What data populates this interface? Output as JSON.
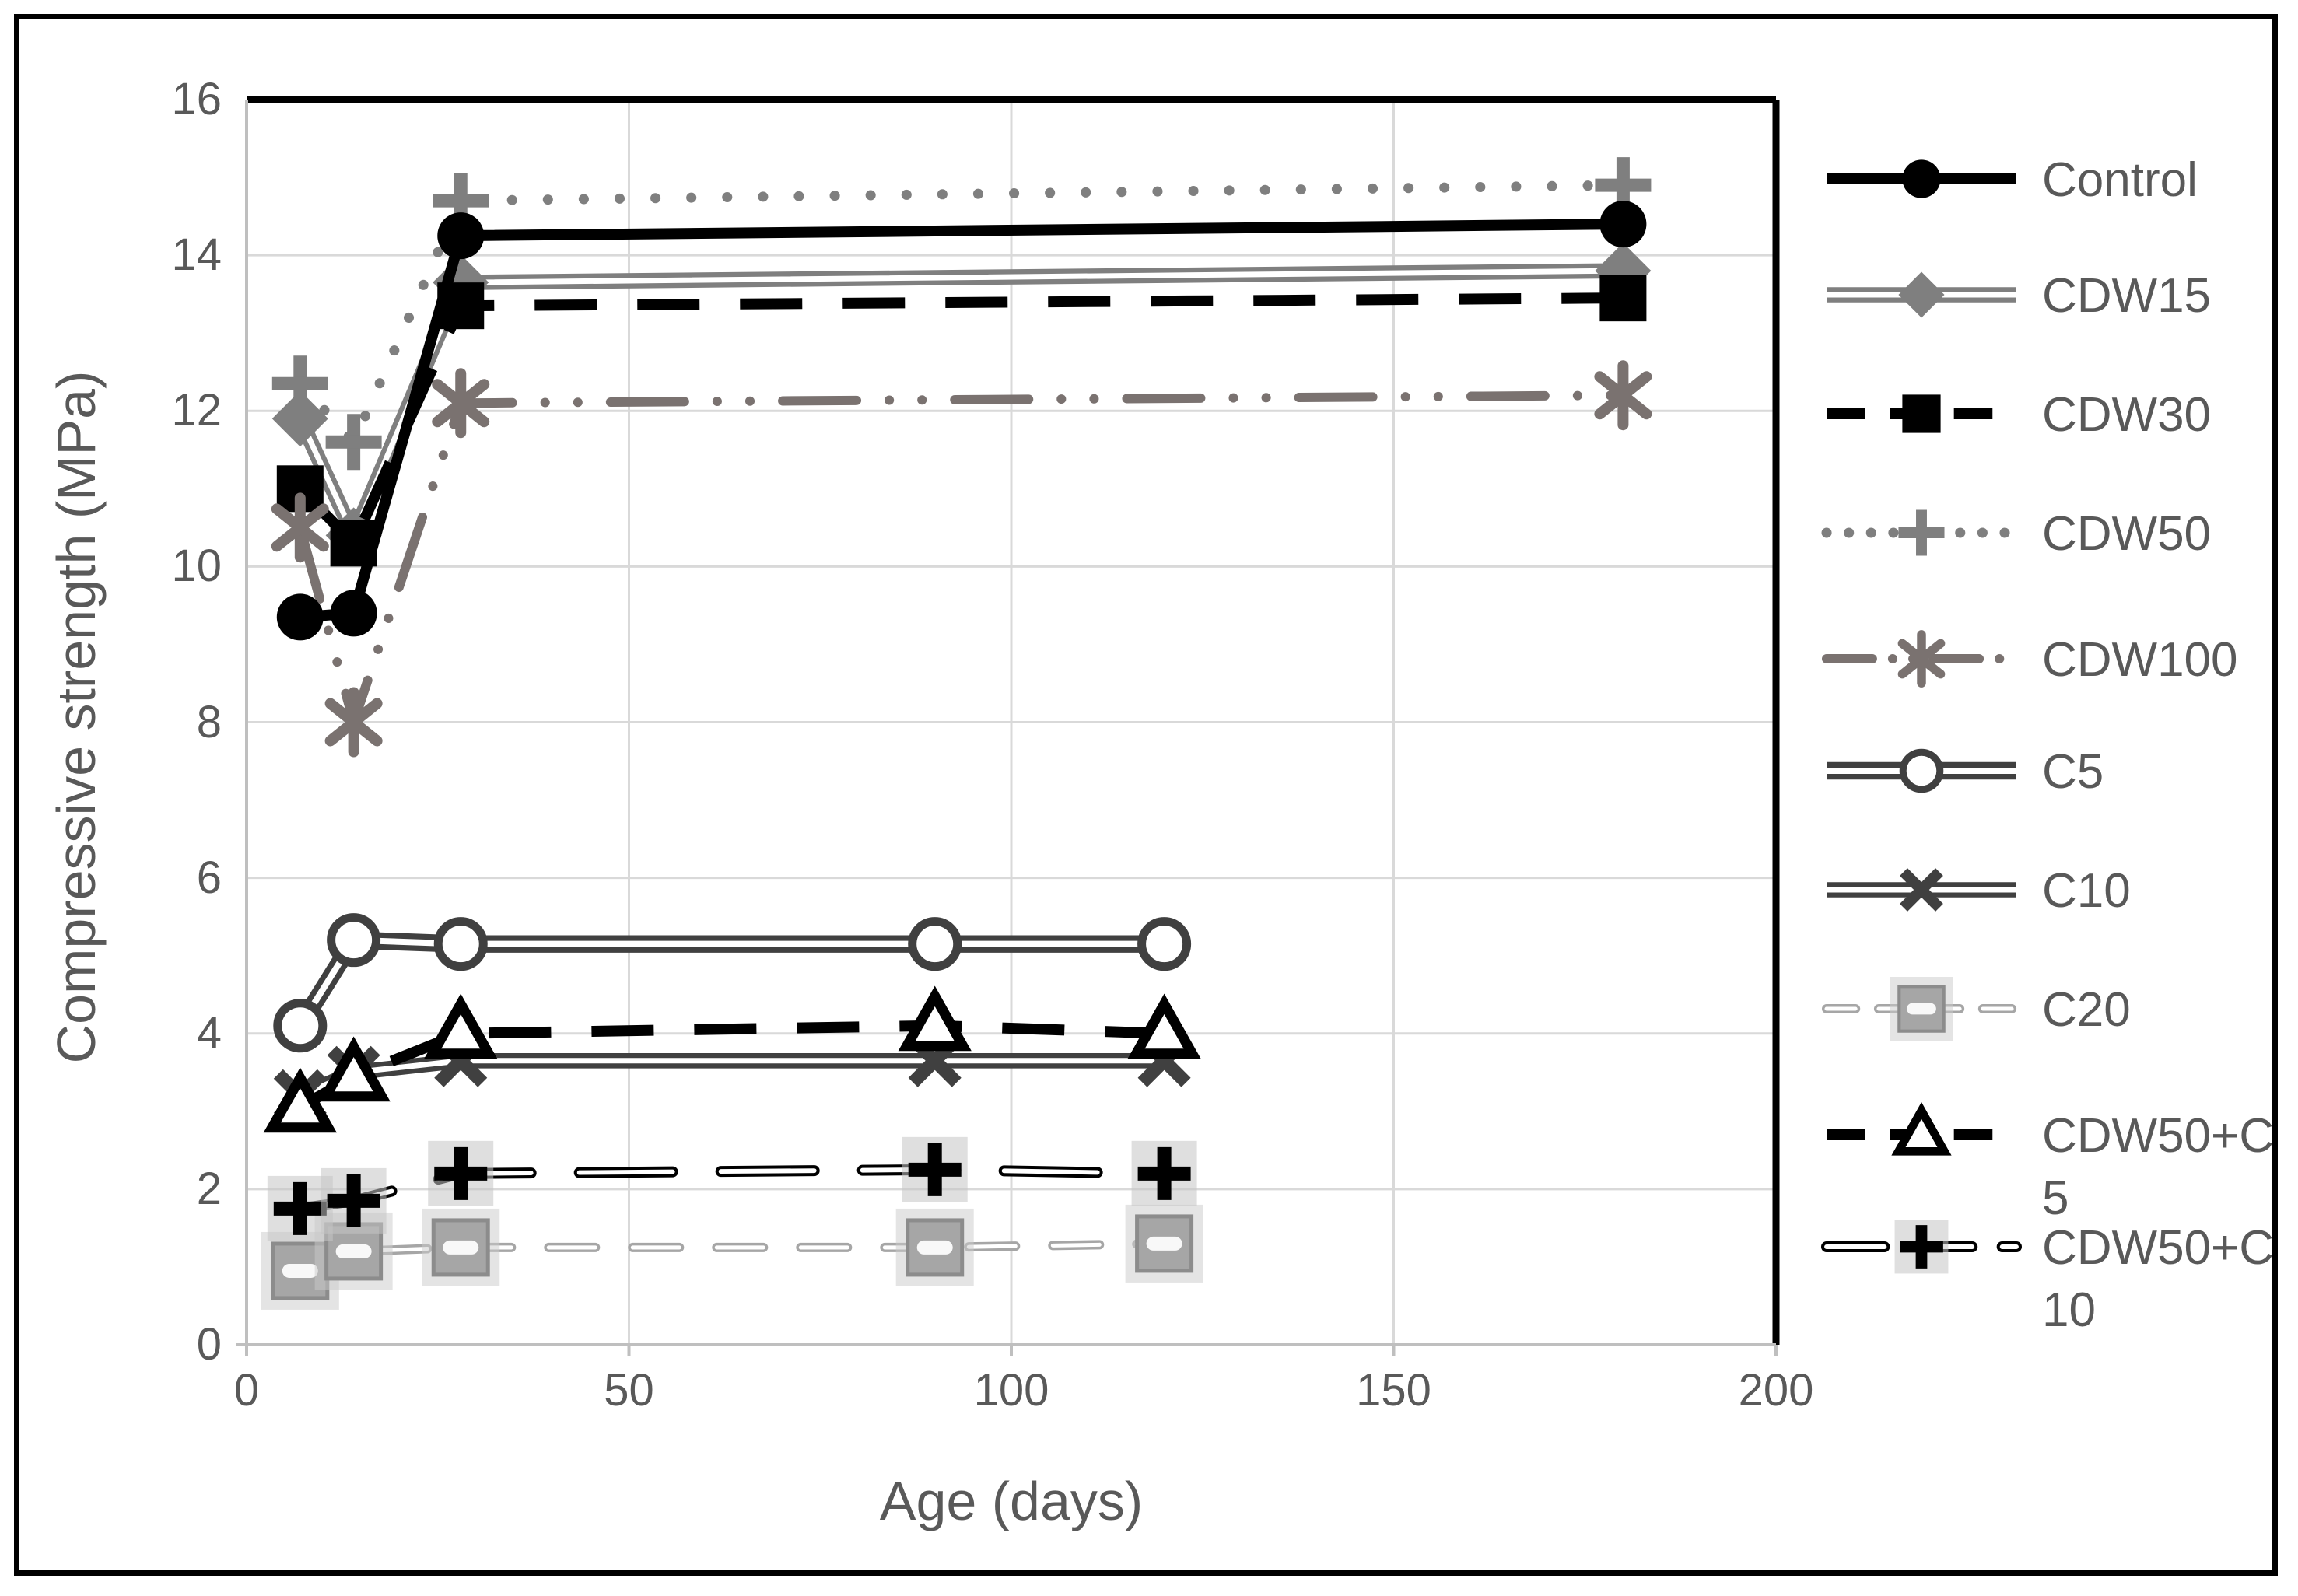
{
  "figure": {
    "background": "#ffffff",
    "border_color": "#000000"
  },
  "colors": {
    "text": "#595959",
    "gridline": "#d9d9d9",
    "axis_line": "#bfbfbf",
    "plot_border_dark": "#000000"
  },
  "chart_data": {
    "type": "line",
    "title": "",
    "xlabel": "Age (days)",
    "ylabel": "Compressive strength (MPa)",
    "xlim": [
      0,
      200
    ],
    "ylim": [
      0,
      16
    ],
    "x_ticks": [
      0,
      50,
      100,
      150,
      200
    ],
    "y_ticks": [
      0,
      2,
      4,
      6,
      8,
      10,
      12,
      14,
      16
    ],
    "grid": true,
    "legend_position": "right",
    "series": [
      {
        "name": "Control",
        "label_lines": [
          "Control"
        ],
        "color": "#000000",
        "line": {
          "type": "solid",
          "width": 14
        },
        "marker": "filled-circle",
        "x": [
          7,
          14,
          28,
          180
        ],
        "values": [
          9.35,
          9.4,
          14.25,
          14.4
        ]
      },
      {
        "name": "CDW15",
        "label_lines": [
          "CDW15"
        ],
        "color": "#7f7f7f",
        "line": {
          "type": "double",
          "width": 14
        },
        "marker": "filled-diamond",
        "x": [
          7,
          14,
          28,
          180
        ],
        "values": [
          11.9,
          10.4,
          13.65,
          13.8
        ]
      },
      {
        "name": "CDW30",
        "label_lines": [
          "CDW30"
        ],
        "color": "#000000",
        "line": {
          "type": "dash",
          "width": 14,
          "dash": [
            80,
            52
          ]
        },
        "marker": "filled-square",
        "x": [
          7,
          14,
          28,
          180
        ],
        "values": [
          11.0,
          10.3,
          13.35,
          13.45
        ]
      },
      {
        "name": "CDW50",
        "label_lines": [
          "CDW50"
        ],
        "color": "#7f7f7f",
        "line": {
          "type": "dot",
          "width": 13,
          "dash": [
            0.1,
            46
          ]
        },
        "marker": "bold-plus",
        "x": [
          7,
          14,
          28,
          180
        ],
        "values": [
          12.35,
          11.6,
          14.7,
          14.9
        ]
      },
      {
        "name": "CDW100",
        "label_lines": [
          "CDW100"
        ],
        "color": "#7a7270",
        "line": {
          "type": "dash-dot-dot",
          "width": 12,
          "dash": [
            95,
            42,
            0.1,
            42,
            0.1,
            42
          ]
        },
        "marker": "asterisk",
        "x": [
          7,
          14,
          28,
          180
        ],
        "values": [
          10.5,
          8.0,
          12.1,
          12.2
        ]
      },
      {
        "name": "C5",
        "label_lines": [
          "C5"
        ],
        "color": "#404040",
        "line": {
          "type": "double",
          "width": 16
        },
        "marker": "open-circle",
        "x": [
          7,
          14,
          28,
          90,
          120
        ],
        "values": [
          4.1,
          5.2,
          5.15,
          5.15,
          5.15
        ]
      },
      {
        "name": "C10",
        "label_lines": [
          "C10"
        ],
        "color": "#404040",
        "line": {
          "type": "double",
          "width": 14
        },
        "marker": "bold-x",
        "x": [
          7,
          14,
          28,
          90,
          120
        ],
        "values": [
          3.2,
          3.5,
          3.65,
          3.65,
          3.65
        ]
      },
      {
        "name": "C20",
        "label_lines": [
          "C20"
        ],
        "color": "#a6a6a6",
        "line": {
          "type": "pill-dash",
          "width": 12,
          "dash": [
            60,
            48
          ]
        },
        "marker": "gray-square",
        "x": [
          7,
          14,
          28,
          90,
          120
        ],
        "values": [
          0.95,
          1.2,
          1.25,
          1.25,
          1.3
        ]
      },
      {
        "name": "CDW50+C5",
        "label_lines": [
          "CDW50+C",
          "5"
        ],
        "color": "#000000",
        "line": {
          "type": "dash",
          "width": 14,
          "dash": [
            80,
            52
          ]
        },
        "marker": "open-triangle",
        "x": [
          7,
          14,
          28,
          90,
          120
        ],
        "values": [
          3.05,
          3.45,
          4.0,
          4.1,
          4.0
        ]
      },
      {
        "name": "CDW50+C10",
        "label_lines": [
          "CDW50+C",
          "10"
        ],
        "color": "#000000",
        "line": {
          "type": "pill-dash",
          "width": 14,
          "dash": [
            120,
            62
          ]
        },
        "marker": "halo-plus",
        "x": [
          7,
          14,
          28,
          90,
          120
        ],
        "values": [
          1.75,
          1.85,
          2.2,
          2.25,
          2.2
        ]
      }
    ]
  }
}
